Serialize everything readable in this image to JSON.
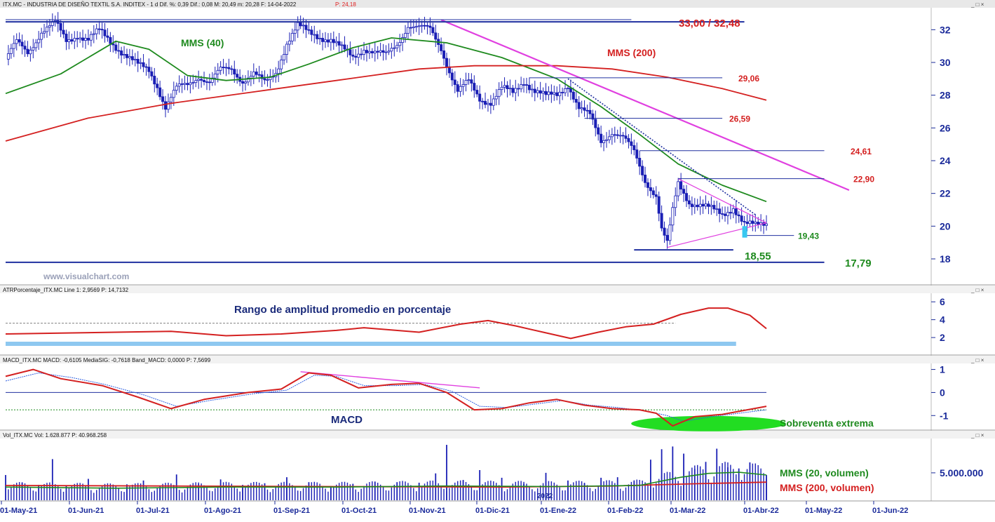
{
  "colors": {
    "candle": "#1a1fb5",
    "sma40": "#1e8a1e",
    "sma200": "#d42020",
    "trendline": "#e040e0",
    "level": "#2030a0",
    "atr": "#d42020",
    "atr_band": "#8ec8f0",
    "macd": "#d42020",
    "macd_signal": "#3060e0",
    "volume": "#1a1fb5",
    "vol_sma20": "#1e8a1e",
    "vol_sma200": "#d42020",
    "oversold": "#22dd22",
    "axis": "#1a2a9a"
  },
  "window_controls": "_ □ ×",
  "panels": {
    "price": {
      "header_info": "ITX.MC - INDUSTRIA DE DISEÑO TEXTIL S.A. INDITEX - 1 d Dif. %: 0,39 Dif.: 0,08 M: 20,49 m: 20,28 F: 14-04-2022",
      "header_p": "P: 24,18",
      "watermark": "www.visualchart.com",
      "label_sma40": "MMS (40)",
      "label_sma200": "MMS (200)"
    },
    "atr": {
      "header_info": "ATRPorcentaje_ITX.MC Line 1: 2,9569 P: 14,7132",
      "title": "Rango de amplitud promedio en porcentaje"
    },
    "macd": {
      "header_info": "MACD_ITX.MC MACD: -0,6105 MediaSIG: -0,7618 Band_MACD: 0,0000 P: 7,5699",
      "label": "MACD",
      "oversold_label": "Sobreventa extrema"
    },
    "volume": {
      "header_info": "Vol_ITX.MC Vol: 1.628.877 P: 40.968.258",
      "label_sma20": "MMS (20, volumen)",
      "label_sma200": "MMS (200, volumen)",
      "inner_year": "2022"
    }
  },
  "chart_data": [
    {
      "type": "candlestick",
      "symbol": "ITX.MC",
      "x_ticks": [
        "01-May-21",
        "01-Jun-21",
        "01-Jul-21",
        "01-Ago-21",
        "01-Sep-21",
        "01-Oct-21",
        "01-Nov-21",
        "01-Dic-21",
        "01-Ene-22",
        "01-Feb-22",
        "01-Mar-22",
        "01-Abr-22",
        "01-May-22",
        "01-Jun-22"
      ],
      "y_ticks": [
        18,
        20,
        22,
        24,
        26,
        28,
        30,
        32
      ],
      "ylim": [
        16.5,
        33.3
      ],
      "price_path": [
        [
          0,
          30.2
        ],
        [
          4,
          31.2
        ],
        [
          8,
          30.6
        ],
        [
          13,
          31.9
        ],
        [
          18,
          32.4
        ],
        [
          22,
          31.3
        ],
        [
          26,
          31.7
        ],
        [
          30,
          31.4
        ],
        [
          34,
          31.9
        ],
        [
          40,
          31.0
        ],
        [
          44,
          30.4
        ],
        [
          48,
          29.8
        ],
        [
          52,
          29.5
        ],
        [
          55,
          28.6
        ],
        [
          58,
          27.3
        ],
        [
          62,
          28.4
        ],
        [
          66,
          28.6
        ],
        [
          70,
          29.2
        ],
        [
          74,
          28.8
        ],
        [
          78,
          29.5
        ],
        [
          82,
          29.6
        ],
        [
          86,
          28.9
        ],
        [
          90,
          29.3
        ],
        [
          94,
          28.7
        ],
        [
          98,
          29.4
        ],
        [
          102,
          31.2
        ],
        [
          106,
          32.2
        ],
        [
          110,
          31.8
        ],
        [
          114,
          31.6
        ],
        [
          118,
          31.4
        ],
        [
          122,
          30.8
        ],
        [
          126,
          30.3
        ],
        [
          130,
          30.9
        ],
        [
          134,
          30.6
        ],
        [
          138,
          30.4
        ],
        [
          142,
          31.1
        ],
        [
          146,
          32.3
        ],
        [
          150,
          32.1
        ],
        [
          154,
          32.0
        ],
        [
          158,
          30.9
        ],
        [
          161,
          29.5
        ],
        [
          164,
          28.2
        ],
        [
          168,
          28.8
        ],
        [
          172,
          27.8
        ],
        [
          176,
          27.6
        ],
        [
          180,
          28.4
        ],
        [
          184,
          28.1
        ],
        [
          188,
          28.9
        ],
        [
          192,
          28.3
        ],
        [
          196,
          27.9
        ],
        [
          200,
          28.0
        ],
        [
          204,
          28.7
        ],
        [
          208,
          27.2
        ],
        [
          212,
          26.7
        ],
        [
          216,
          25.2
        ],
        [
          220,
          25.8
        ],
        [
          224,
          25.4
        ],
        [
          228,
          24.5
        ],
        [
          232,
          22.8
        ],
        [
          236,
          21.9
        ],
        [
          238,
          19.8
        ],
        [
          240,
          18.9
        ],
        [
          242,
          20.9
        ],
        [
          244,
          22.6
        ],
        [
          248,
          21.5
        ],
        [
          252,
          21.3
        ],
        [
          256,
          21.0
        ],
        [
          260,
          20.7
        ],
        [
          264,
          21.2
        ],
        [
          268,
          20.1
        ],
        [
          272,
          20.0
        ],
        [
          276,
          20.2
        ],
        [
          280,
          20.4
        ]
      ],
      "series": [
        {
          "name": "MMS (40)",
          "values": [
            [
              0,
              28.1
            ],
            [
              20,
              29.3
            ],
            [
              40,
              31.3
            ],
            [
              52,
              30.8
            ],
            [
              66,
              29.2
            ],
            [
              80,
              28.9
            ],
            [
              96,
              29.1
            ],
            [
              110,
              29.9
            ],
            [
              126,
              30.9
            ],
            [
              140,
              31.5
            ],
            [
              160,
              31.2
            ],
            [
              180,
              30.3
            ],
            [
              200,
              29.0
            ],
            [
              216,
              27.3
            ],
            [
              230,
              25.6
            ],
            [
              244,
              23.8
            ],
            [
              260,
              22.5
            ],
            [
              276,
              21.5
            ]
          ]
        },
        {
          "name": "MMS (200)",
          "values": [
            [
              0,
              25.2
            ],
            [
              30,
              26.6
            ],
            [
              60,
              27.5
            ],
            [
              90,
              28.2
            ],
            [
              120,
              28.9
            ],
            [
              150,
              29.6
            ],
            [
              170,
              29.8
            ],
            [
              200,
              29.8
            ],
            [
              220,
              29.6
            ],
            [
              240,
              29.1
            ],
            [
              260,
              28.4
            ],
            [
              276,
              27.7
            ]
          ]
        }
      ],
      "levels": [
        {
          "label": "33,00 / 32,48",
          "value": 32.48,
          "from": 0,
          "to": 268
        },
        {
          "label": "29,06",
          "value": 29.06,
          "from": 190,
          "to": 260
        },
        {
          "label": "26,59",
          "value": 26.59,
          "from": 210,
          "to": 260
        },
        {
          "label": "24,61",
          "value": 24.61,
          "from": 230,
          "to": 297
        },
        {
          "label": "22,90",
          "value": 22.9,
          "from": 244,
          "to": 297
        },
        {
          "label": "19,43",
          "value": 19.43,
          "from": 268,
          "to": 286
        },
        {
          "label": "18,55",
          "value": 18.55,
          "from": 228,
          "to": 264
        },
        {
          "label": "17,79",
          "value": 17.79,
          "from": 0,
          "to": 297
        }
      ],
      "trendlines": [
        {
          "from": [
            158,
            32.6
          ],
          "to": [
            306,
            22.2
          ],
          "style": "solid"
        },
        {
          "from": [
            204,
            29.0
          ],
          "to": [
            272,
            20.7
          ],
          "style": "dotted"
        },
        {
          "from": [
            240,
            18.7
          ],
          "to": [
            276,
            20.2
          ],
          "style": "triangle-lower"
        },
        {
          "from": [
            244,
            22.9
          ],
          "to": [
            276,
            20.2
          ],
          "style": "triangle-upper"
        }
      ]
    },
    {
      "type": "line",
      "name": "ATRPorcentaje",
      "y_ticks": [
        2,
        4,
        6
      ],
      "ylim": [
        0.2,
        6.8
      ],
      "values": [
        [
          0,
          2.4
        ],
        [
          20,
          2.5
        ],
        [
          40,
          2.6
        ],
        [
          60,
          2.7
        ],
        [
          80,
          2.2
        ],
        [
          100,
          2.4
        ],
        [
          120,
          2.8
        ],
        [
          130,
          3.1
        ],
        [
          150,
          2.6
        ],
        [
          165,
          3.5
        ],
        [
          175,
          3.9
        ],
        [
          185,
          3.3
        ],
        [
          195,
          2.6
        ],
        [
          205,
          1.9
        ],
        [
          215,
          2.6
        ],
        [
          225,
          3.2
        ],
        [
          235,
          3.5
        ],
        [
          245,
          4.6
        ],
        [
          255,
          5.3
        ],
        [
          262,
          5.3
        ],
        [
          270,
          4.5
        ],
        [
          276,
          3.0
        ]
      ],
      "reference_value": 3.6,
      "band_value": 1.3
    },
    {
      "type": "line",
      "name": "MACD",
      "y_ticks": [
        -1,
        0,
        1
      ],
      "ylim": [
        -1.6,
        1.2
      ],
      "series": [
        {
          "name": "",
          "values": [
            [
              0,
              0.7
            ],
            [
              10,
              1.0
            ],
            [
              20,
              0.6
            ],
            [
              35,
              0.3
            ],
            [
              48,
              -0.2
            ],
            [
              60,
              -0.7
            ],
            [
              72,
              -0.3
            ],
            [
              88,
              0.0
            ],
            [
              100,
              0.15
            ],
            [
              110,
              0.85
            ],
            [
              118,
              0.75
            ],
            [
              128,
              0.2
            ],
            [
              140,
              0.35
            ],
            [
              150,
              0.4
            ],
            [
              160,
              0.0
            ],
            [
              170,
              -0.75
            ],
            [
              180,
              -0.7
            ],
            [
              190,
              -0.45
            ],
            [
              200,
              -0.3
            ],
            [
              210,
              -0.55
            ],
            [
              220,
              -0.7
            ],
            [
              230,
              -0.75
            ],
            [
              236,
              -0.9
            ],
            [
              242,
              -1.45
            ],
            [
              250,
              -1.05
            ],
            [
              260,
              -0.95
            ],
            [
              276,
              -0.6
            ]
          ]
        },
        {
          "name": "",
          "values": [
            [
              0,
              0.5
            ],
            [
              12,
              0.85
            ],
            [
              24,
              0.65
            ],
            [
              36,
              0.35
            ],
            [
              50,
              -0.1
            ],
            [
              62,
              -0.6
            ],
            [
              74,
              -0.35
            ],
            [
              90,
              -0.05
            ],
            [
              102,
              0.1
            ],
            [
              112,
              0.75
            ],
            [
              120,
              0.7
            ],
            [
              130,
              0.3
            ],
            [
              142,
              0.3
            ],
            [
              152,
              0.35
            ],
            [
              162,
              0.05
            ],
            [
              172,
              -0.6
            ],
            [
              182,
              -0.65
            ],
            [
              192,
              -0.5
            ],
            [
              202,
              -0.35
            ],
            [
              212,
              -0.55
            ],
            [
              222,
              -0.65
            ],
            [
              232,
              -0.8
            ],
            [
              240,
              -1.0
            ],
            [
              246,
              -1.25
            ],
            [
              256,
              -1.05
            ],
            [
              276,
              -0.75
            ]
          ]
        }
      ],
      "zero_value": 0,
      "signal_reference": -0.75,
      "oversold_zone": {
        "from": 230,
        "to": 280
      }
    },
    {
      "type": "bar",
      "name": "Volumen",
      "y_ticks": [
        5000000
      ],
      "y_tick_labels": [
        "5.000.000"
      ],
      "ylim": [
        0,
        11000000
      ],
      "values": [
        [
          0,
          4.6
        ],
        [
          6,
          3.2
        ],
        [
          12,
          2.8
        ],
        [
          17,
          7.5
        ],
        [
          22,
          2.6
        ],
        [
          30,
          3.9
        ],
        [
          38,
          2.4
        ],
        [
          44,
          2.9
        ],
        [
          50,
          3.6
        ],
        [
          56,
          2.2
        ],
        [
          62,
          4.7
        ],
        [
          70,
          3.0
        ],
        [
          78,
          3.8
        ],
        [
          86,
          2.8
        ],
        [
          94,
          3.1
        ],
        [
          102,
          4.2
        ],
        [
          110,
          3.3
        ],
        [
          118,
          2.6
        ],
        [
          126,
          3.0
        ],
        [
          134,
          3.4
        ],
        [
          142,
          3.3
        ],
        [
          150,
          3.2
        ],
        [
          156,
          4.9
        ],
        [
          160,
          10.1
        ],
        [
          166,
          3.7
        ],
        [
          172,
          5.5
        ],
        [
          180,
          4.1
        ],
        [
          188,
          3.0
        ],
        [
          196,
          5.0
        ],
        [
          204,
          3.6
        ],
        [
          210,
          3.1
        ],
        [
          216,
          4.1
        ],
        [
          222,
          4.2
        ],
        [
          228,
          3.5
        ],
        [
          234,
          7.4
        ],
        [
          238,
          9.3
        ],
        [
          242,
          9.8
        ],
        [
          246,
          8.5
        ],
        [
          250,
          5.7
        ],
        [
          254,
          7.0
        ],
        [
          258,
          9.4
        ],
        [
          262,
          6.0
        ],
        [
          266,
          5.8
        ],
        [
          270,
          6.9
        ],
        [
          276,
          4.6
        ]
      ],
      "value_unit": "millones",
      "series": [
        {
          "name": "MMS (20, volumen)",
          "values": [
            [
              0,
              2.4
            ],
            [
              40,
              2.2
            ],
            [
              80,
              2.4
            ],
            [
              120,
              2.4
            ],
            [
              160,
              2.6
            ],
            [
              200,
              2.5
            ],
            [
              230,
              2.7
            ],
            [
              245,
              4.2
            ],
            [
              255,
              4.9
            ],
            [
              266,
              5.1
            ],
            [
              276,
              4.6
            ]
          ]
        },
        {
          "name": "MMS (200, volumen)",
          "values": [
            [
              0,
              2.7
            ],
            [
              60,
              2.6
            ],
            [
              120,
              2.5
            ],
            [
              180,
              2.4
            ],
            [
              220,
              2.6
            ],
            [
              250,
              3.0
            ],
            [
              276,
              3.3
            ]
          ]
        }
      ]
    }
  ]
}
